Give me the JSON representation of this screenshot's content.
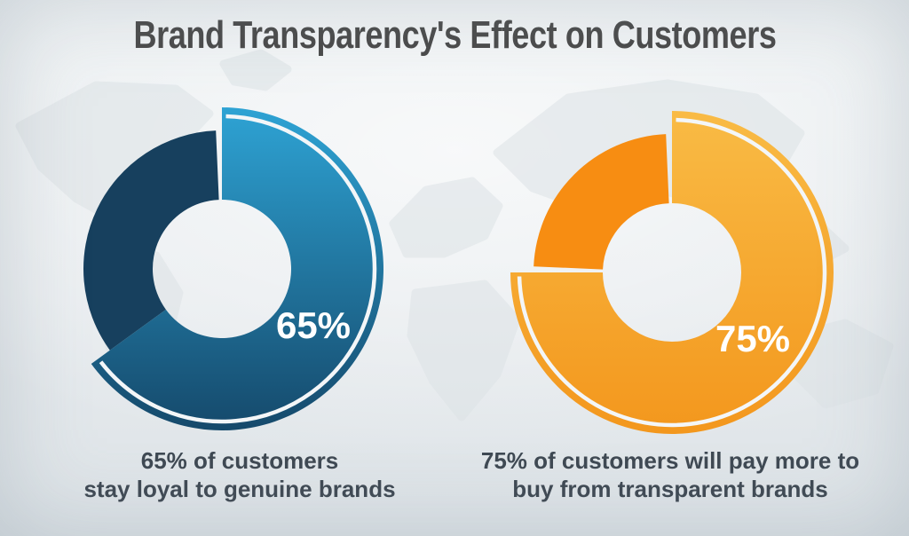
{
  "page": {
    "title": "Brand Transparency's Effect on Customers"
  },
  "colors": {
    "background_light": "#ecf0f2",
    "background_dark": "#dde3e7",
    "title_text": "#4a4a4a",
    "caption_text": "#3f4953",
    "map_watermark": "#dde3e6",
    "percent_label_text": "#ffffff",
    "gap_white": "#f3f6f8"
  },
  "chart_data": [
    {
      "type": "pie",
      "variant": "donut",
      "label": "65%",
      "value_pct": 65,
      "remainder_pct": 35,
      "caption_lines": [
        "65% of customers",
        "stay loyal to genuine brands"
      ],
      "colors": {
        "main_top": "#2ea3d4",
        "main_bottom": "#15496b",
        "remainder": "#17405e",
        "inset_arc": "#f3f6f8"
      }
    },
    {
      "type": "pie",
      "variant": "donut",
      "label": "75%",
      "value_pct": 75,
      "remainder_pct": 25,
      "caption_lines": [
        "75% of customers will pay more to",
        "buy from transparent brands"
      ],
      "colors": {
        "main_top": "#f9bb45",
        "main_bottom": "#f3971d",
        "remainder": "#f78d12",
        "inset_arc": "#f3f6f8"
      }
    }
  ]
}
